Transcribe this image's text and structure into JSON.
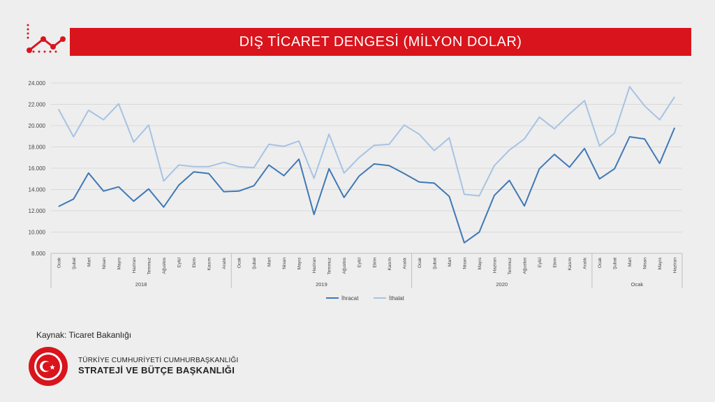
{
  "header": {
    "title": "DIŞ TİCARET DENGESİ (MİLYON DOLAR)"
  },
  "footer": {
    "source": "Kaynak: Ticaret Bakanlığı",
    "org_line1": "TÜRKİYE CUMHURİYETİ CUMHURBAŞKANLIĞI",
    "org_line2": "STRATEJİ VE BÜTÇE BAŞKANLIĞI"
  },
  "colors": {
    "banner": "#d9141c",
    "ihracat": "#3f78b5",
    "ithalat": "#a6c3e4",
    "grid": "#d9d9d9"
  },
  "icons": [
    "trend-chart-icon",
    "seal-logo-icon"
  ],
  "chart_data": {
    "type": "line",
    "title": "DIŞ TİCARET DENGESİ (MİLYON DOLAR)",
    "xlabel": "",
    "ylabel": "",
    "ylim": [
      8000,
      24000
    ],
    "yticks": [
      "8.000",
      "10.000",
      "12.000",
      "14.000",
      "16.000",
      "18.000",
      "20.000",
      "22.000",
      "24.000"
    ],
    "grid": true,
    "legend_position": "bottom",
    "groups": [
      {
        "label": "2018",
        "months": [
          "Ocak",
          "Şubat",
          "Mart",
          "Nisan",
          "Mayıs",
          "Haziran",
          "Temmuz",
          "Ağustos",
          "Eylül",
          "Ekim",
          "Kasım",
          "Aralık"
        ]
      },
      {
        "label": "2019",
        "months": [
          "Ocak",
          "Şubat",
          "Mart",
          "Nisan",
          "Mayıs",
          "Haziran",
          "Temmuz",
          "Ağustos",
          "Eylül",
          "Ekim",
          "Kasım",
          "Aralık"
        ]
      },
      {
        "label": "2020",
        "months": [
          "Ocak",
          "Şubat",
          "Mart",
          "Nisan",
          "Mayıs",
          "Haziran",
          "Temmuz",
          "Ağustos",
          "Eylül",
          "Ekim",
          "Kasım",
          "Aralık"
        ]
      },
      {
        "label": "Ocak",
        "months": [
          "Ocak",
          "Şubat",
          "Mart",
          "Nisan",
          "Mayıs",
          "Haziran"
        ]
      }
    ],
    "series": [
      {
        "name": "İhracat",
        "color": "#3f78b5",
        "values": [
          12400,
          13100,
          15550,
          13850,
          14250,
          12900,
          14050,
          12350,
          14400,
          15650,
          15500,
          13800,
          13850,
          14350,
          16300,
          15300,
          16850,
          11650,
          15950,
          13250,
          15250,
          16400,
          16250,
          15500,
          14700,
          14600,
          13350,
          9000,
          10000,
          13450,
          14850,
          12450,
          15950,
          17300,
          16100,
          17850,
          15000,
          15950,
          18950,
          18750,
          16450,
          19800
        ]
      },
      {
        "name": "İthalat",
        "color": "#a6c3e4",
        "values": [
          21550,
          18950,
          21450,
          20550,
          22050,
          18450,
          20050,
          14800,
          16300,
          16150,
          16150,
          16550,
          16150,
          16050,
          18250,
          18050,
          18550,
          15050,
          19200,
          15550,
          17000,
          18150,
          18250,
          20050,
          19200,
          17650,
          18850,
          13550,
          13400,
          16250,
          17700,
          18750,
          20800,
          19700,
          21100,
          22350,
          18100,
          19300,
          23650,
          21850,
          20550,
          22700
        ]
      }
    ]
  }
}
